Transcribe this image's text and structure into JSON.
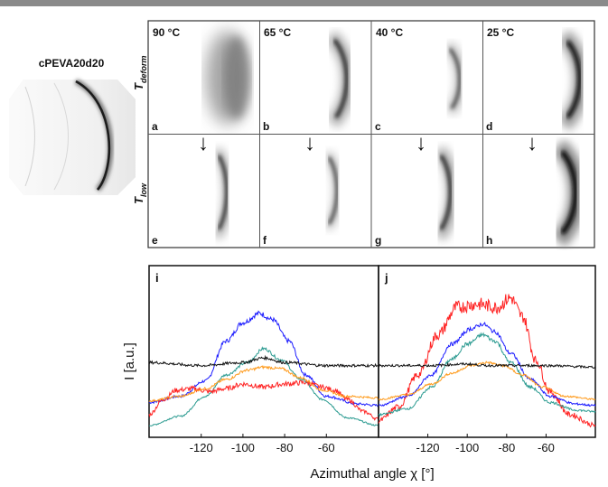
{
  "figure": {
    "sample_label": "cPEVA20d20",
    "row_labels": [
      {
        "main": "T",
        "sub": "deform"
      },
      {
        "main": "T",
        "sub": "low"
      }
    ],
    "temperatures": [
      "90 °C",
      "65 °C",
      "40 °C",
      "25 °C"
    ],
    "top_panel_letters": [
      "a",
      "b",
      "c",
      "d"
    ],
    "bottom_panel_letters": [
      "e",
      "f",
      "g",
      "h"
    ],
    "arrow": "↓"
  },
  "chart_data": [
    {
      "type": "line",
      "panel": "i",
      "xlabel": "Azimuthal angle χ [°]",
      "ylabel": "I [a.u.]",
      "xlim": [
        -145,
        -35
      ],
      "x_ticks": [
        -120,
        -100,
        -80,
        -60
      ],
      "y_ticks": [],
      "grid": false,
      "legend": "none",
      "series": [
        {
          "color": "#1a1aff",
          "noise": 1.2,
          "values": [
            [
              -145,
              0.18
            ],
            [
              -130,
              0.22
            ],
            [
              -118,
              0.32
            ],
            [
              -108,
              0.58
            ],
            [
              -100,
              0.7
            ],
            [
              -92,
              0.76
            ],
            [
              -86,
              0.72
            ],
            [
              -78,
              0.58
            ],
            [
              -70,
              0.36
            ],
            [
              -60,
              0.22
            ],
            [
              -45,
              0.17
            ],
            [
              -35,
              0.16
            ]
          ]
        },
        {
          "color": "#2a9a90",
          "noise": 0.9,
          "values": [
            [
              -145,
              0.03
            ],
            [
              -130,
              0.09
            ],
            [
              -118,
              0.22
            ],
            [
              -108,
              0.36
            ],
            [
              -98,
              0.44
            ],
            [
              -90,
              0.53
            ],
            [
              -82,
              0.46
            ],
            [
              -72,
              0.33
            ],
            [
              -62,
              0.2
            ],
            [
              -50,
              0.08
            ],
            [
              -35,
              0.03
            ]
          ]
        },
        {
          "color": "#ff2222",
          "noise": 2.0,
          "values": [
            [
              -145,
              0.1
            ],
            [
              -138,
              0.2
            ],
            [
              -132,
              0.26
            ],
            [
              -124,
              0.27
            ],
            [
              -116,
              0.25
            ],
            [
              -108,
              0.27
            ],
            [
              -100,
              0.3
            ],
            [
              -90,
              0.28
            ],
            [
              -80,
              0.3
            ],
            [
              -70,
              0.31
            ],
            [
              -62,
              0.28
            ],
            [
              -56,
              0.26
            ],
            [
              -50,
              0.2
            ],
            [
              -42,
              0.12
            ],
            [
              -35,
              0.07
            ]
          ]
        },
        {
          "color": "#ff9a1a",
          "noise": 0.9,
          "values": [
            [
              -145,
              0.19
            ],
            [
              -130,
              0.22
            ],
            [
              -118,
              0.27
            ],
            [
              -108,
              0.33
            ],
            [
              -98,
              0.39
            ],
            [
              -90,
              0.41
            ],
            [
              -82,
              0.4
            ],
            [
              -72,
              0.34
            ],
            [
              -62,
              0.26
            ],
            [
              -50,
              0.22
            ],
            [
              -35,
              0.21
            ]
          ]
        },
        {
          "color": "#111111",
          "noise": 0.9,
          "values": [
            [
              -145,
              0.44
            ],
            [
              -120,
              0.42
            ],
            [
              -100,
              0.44
            ],
            [
              -90,
              0.47
            ],
            [
              -80,
              0.44
            ],
            [
              -60,
              0.42
            ],
            [
              -35,
              0.42
            ]
          ]
        }
      ]
    },
    {
      "type": "line",
      "panel": "j",
      "xlabel": "Azimuthal angle χ [°]",
      "ylabel": "I [a.u.]",
      "xlim": [
        -145,
        -35
      ],
      "x_ticks": [
        -120,
        -100,
        -80,
        -60
      ],
      "y_ticks": [],
      "grid": false,
      "legend": "none",
      "series": [
        {
          "color": "#ff2222",
          "noise": 3.0,
          "values": [
            [
              -145,
              0.06
            ],
            [
              -135,
              0.15
            ],
            [
              -125,
              0.36
            ],
            [
              -115,
              0.62
            ],
            [
              -105,
              0.8
            ],
            [
              -95,
              0.82
            ],
            [
              -85,
              0.8
            ],
            [
              -78,
              0.86
            ],
            [
              -72,
              0.74
            ],
            [
              -65,
              0.45
            ],
            [
              -58,
              0.25
            ],
            [
              -48,
              0.1
            ],
            [
              -35,
              0.03
            ]
          ]
        },
        {
          "color": "#1a1aff",
          "noise": 1.0,
          "values": [
            [
              -145,
              0.16
            ],
            [
              -130,
              0.22
            ],
            [
              -118,
              0.36
            ],
            [
              -108,
              0.56
            ],
            [
              -98,
              0.66
            ],
            [
              -92,
              0.69
            ],
            [
              -86,
              0.64
            ],
            [
              -78,
              0.5
            ],
            [
              -68,
              0.33
            ],
            [
              -58,
              0.22
            ],
            [
              -45,
              0.17
            ],
            [
              -35,
              0.16
            ]
          ]
        },
        {
          "color": "#2a9a90",
          "noise": 1.1,
          "values": [
            [
              -145,
              0.1
            ],
            [
              -130,
              0.14
            ],
            [
              -118,
              0.28
            ],
            [
              -108,
              0.46
            ],
            [
              -100,
              0.56
            ],
            [
              -92,
              0.62
            ],
            [
              -86,
              0.58
            ],
            [
              -78,
              0.44
            ],
            [
              -68,
              0.28
            ],
            [
              -58,
              0.18
            ],
            [
              -45,
              0.13
            ],
            [
              -35,
              0.12
            ]
          ]
        },
        {
          "color": "#ff9a1a",
          "noise": 0.8,
          "values": [
            [
              -145,
              0.2
            ],
            [
              -130,
              0.23
            ],
            [
              -118,
              0.3
            ],
            [
              -108,
              0.37
            ],
            [
              -98,
              0.42
            ],
            [
              -90,
              0.44
            ],
            [
              -82,
              0.42
            ],
            [
              -72,
              0.36
            ],
            [
              -62,
              0.28
            ],
            [
              -50,
              0.22
            ],
            [
              -35,
              0.2
            ]
          ]
        },
        {
          "color": "#111111",
          "noise": 0.8,
          "values": [
            [
              -145,
              0.42
            ],
            [
              -120,
              0.42
            ],
            [
              -100,
              0.43
            ],
            [
              -90,
              0.42
            ],
            [
              -80,
              0.42
            ],
            [
              -60,
              0.42
            ],
            [
              -35,
              0.41
            ]
          ]
        }
      ]
    }
  ]
}
